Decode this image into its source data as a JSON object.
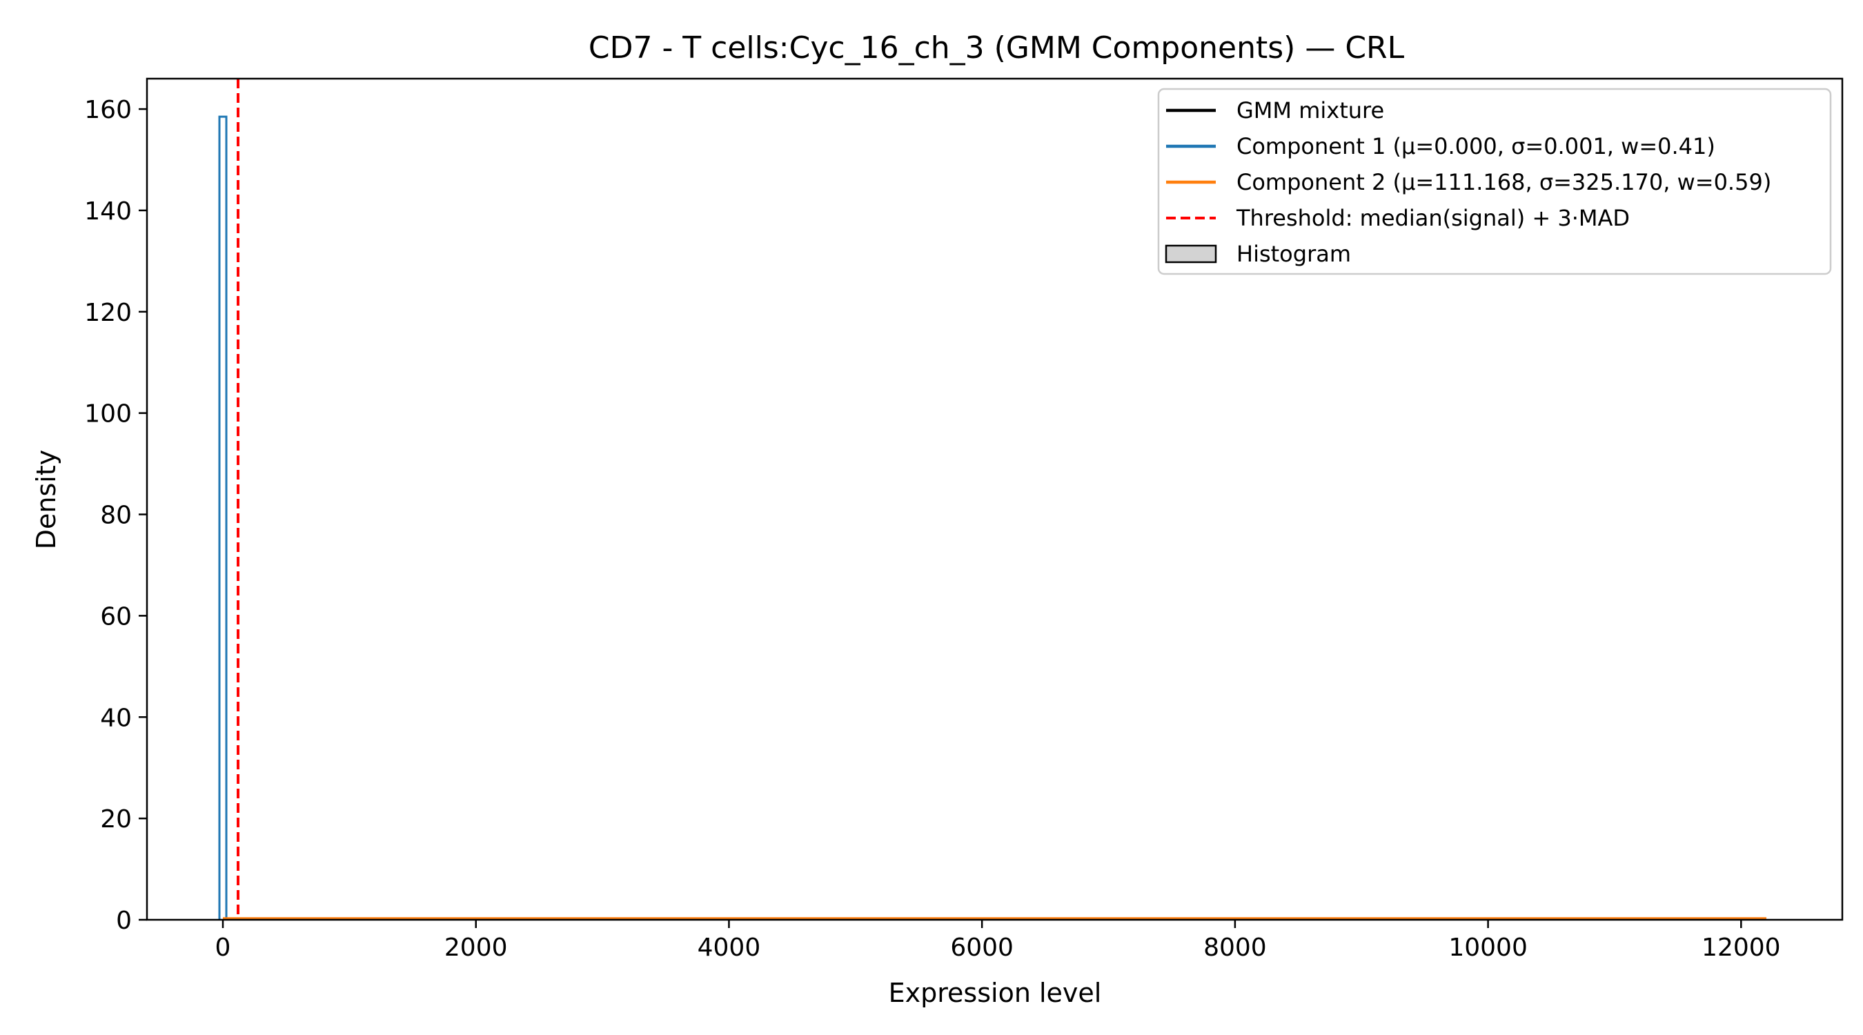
{
  "chart_data": {
    "type": "line",
    "title": "CD7 - T cells:Cyc_16_ch_3 (GMM Components) — CRL",
    "xlabel": "Expression level",
    "ylabel": "Density",
    "xlim": [
      -600,
      12800
    ],
    "ylim": [
      0,
      166
    ],
    "x_ticks": [
      0,
      2000,
      4000,
      6000,
      8000,
      10000,
      12000
    ],
    "x_tick_labels": [
      "0",
      "2000",
      "4000",
      "6000",
      "8000",
      "10000",
      "12000"
    ],
    "y_ticks": [
      0,
      20,
      40,
      60,
      80,
      100,
      120,
      140,
      160
    ],
    "y_tick_labels": [
      "0",
      "20",
      "40",
      "60",
      "80",
      "100",
      "120",
      "140",
      "160"
    ],
    "grid": false,
    "legend_position": "top-right",
    "data_range": [
      0,
      12200
    ],
    "series": [
      {
        "name": "GMM mixture",
        "color": "#000000",
        "style": "solid",
        "x": [
          0,
          0.001,
          12200
        ],
        "y": [
          158.5,
          0.5,
          0
        ]
      },
      {
        "name": "Component 1 (μ=0.000, σ=0.001, w=0.41)",
        "color": "#1f77b4",
        "style": "solid",
        "x": [
          0,
          0.001,
          12200
        ],
        "y": [
          158.5,
          0,
          0
        ],
        "peak": 158.5
      },
      {
        "name": "Component 2 (μ=111.168, σ=325.170, w=0.59)",
        "color": "#ff7f0e",
        "style": "solid",
        "x": [
          0,
          111.168,
          12200
        ],
        "y": [
          0.0007,
          0.0007,
          0
        ]
      }
    ],
    "threshold": {
      "name": "Threshold: median(signal) + 3·MAD",
      "x": 120,
      "color": "#ff0000",
      "style": "dashed"
    },
    "histogram": {
      "name": "Histogram",
      "color": "#d3d3d3",
      "edge": "#000000"
    },
    "legend": [
      {
        "label": "GMM mixture",
        "color": "#000000",
        "kind": "line"
      },
      {
        "label": "Component 1 (μ=0.000, σ=0.001, w=0.41)",
        "color": "#1f77b4",
        "kind": "line"
      },
      {
        "label": "Component 2 (μ=111.168, σ=325.170, w=0.59)",
        "color": "#ff7f0e",
        "kind": "line"
      },
      {
        "label": "Threshold: median(signal) + 3·MAD",
        "color": "#ff0000",
        "kind": "dashed"
      },
      {
        "label": "Histogram",
        "color": "#d3d3d3",
        "kind": "patch"
      }
    ]
  }
}
